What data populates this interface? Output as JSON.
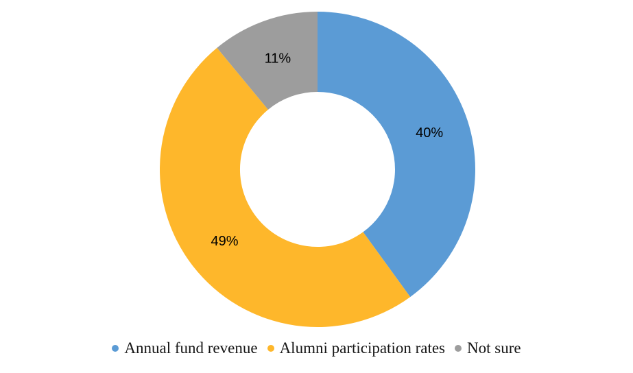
{
  "chart_data": {
    "type": "pie",
    "subtype": "donut",
    "title": "",
    "categories": [
      "Annual fund revenue",
      "Alumni participation rates",
      "Not sure"
    ],
    "values": [
      40,
      49,
      11
    ],
    "data_labels": [
      "40%",
      "49%",
      "11%"
    ],
    "colors": [
      "#5B9BD5",
      "#FEB72B",
      "#9D9D9D"
    ],
    "data_label_color": "#000000",
    "start_angle_deg": 0,
    "direction": "clockwise",
    "hole_ratio": 0.49,
    "legend_position": "bottom",
    "background": "#ffffff"
  }
}
